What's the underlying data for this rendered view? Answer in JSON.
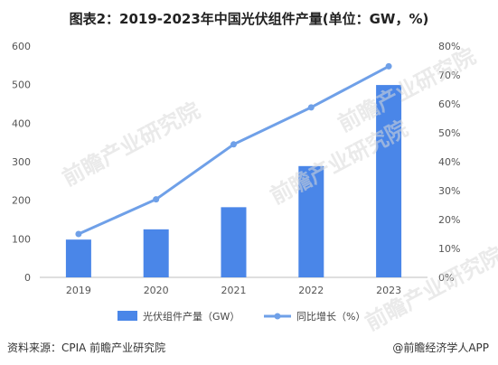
{
  "title": "图表2：2019-2023年中国光伏组件产量(单位：GW，%)",
  "chart_data": {
    "type": "bar",
    "categories": [
      "2019",
      "2020",
      "2021",
      "2022",
      "2023"
    ],
    "series": [
      {
        "name": "光伏组件产量（GW）",
        "type": "bar",
        "axis": "left",
        "values": [
          98,
          124.6,
          182,
          288.7,
          499
        ],
        "color": "#4a86e8"
      },
      {
        "name": "同比增长（%）",
        "type": "line",
        "axis": "right",
        "values": [
          15,
          27,
          46,
          58.8,
          73
        ],
        "color": "#6fa0e8"
      }
    ],
    "y_left": {
      "min": 0,
      "max": 600,
      "ticks": [
        0,
        100,
        200,
        300,
        400,
        500,
        600
      ]
    },
    "y_right": {
      "min": 0,
      "max": 80,
      "ticks": [
        "0%",
        "10%",
        "20%",
        "30%",
        "40%",
        "50%",
        "60%",
        "70%",
        "80%"
      ]
    },
    "legend": "bottom-center"
  },
  "watermark": "前瞻产业研究院",
  "footer": {
    "source": "资料来源：CPIA 前瞻产业研究院",
    "credit": "@前瞻经济学人APP"
  }
}
